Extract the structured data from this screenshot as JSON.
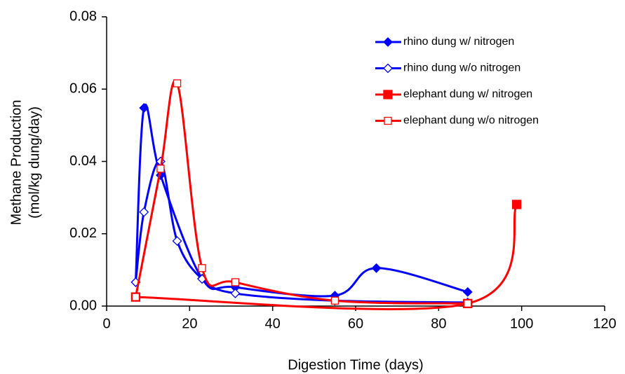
{
  "chart_data": {
    "type": "line",
    "xlabel": "Digestion Time (days)",
    "ylabel": [
      "Methane Production",
      "(mol/kg dung/day)"
    ],
    "xlim": [
      0,
      120
    ],
    "xticks": [
      0,
      20,
      40,
      60,
      80,
      100,
      120
    ],
    "ylim": [
      0,
      0.08
    ],
    "yticks": [
      {
        "value": 0,
        "label": "0.00"
      },
      {
        "value": 0.02,
        "label": "0.02"
      },
      {
        "value": 0.04,
        "label": "0.04"
      },
      {
        "value": 0.06,
        "label": "0.06"
      },
      {
        "value": 0.08,
        "label": "0.08"
      }
    ],
    "legend": "upper right",
    "series": [
      {
        "name": "rhino dung w/ nitrogen",
        "color": "#0000ff",
        "marker": "filled-diamond",
        "x": [
          7,
          9,
          13,
          23,
          31,
          55,
          65,
          87
        ],
        "values": [
          0.0066,
          0.0548,
          0.0362,
          0.0076,
          0.0052,
          0.0029,
          0.0105,
          0.0039
        ]
      },
      {
        "name": "rhino dung w/o nitrogen",
        "color": "#0000ff",
        "marker": "open-diamond",
        "x": [
          7,
          9,
          13,
          17,
          23,
          31,
          55,
          87
        ],
        "values": [
          0.0066,
          0.026,
          0.04,
          0.018,
          0.0075,
          0.0035,
          0.0015,
          0.001
        ]
      },
      {
        "name": "elephant dung w/ nitrogen",
        "color": "#ff0000",
        "marker": "filled-square",
        "x": [
          7,
          87,
          98.8
        ],
        "values": [
          0.0025,
          0.0007,
          0.0281
        ]
      },
      {
        "name": "elephant dung w/o nitrogen",
        "color": "#ff0000",
        "marker": "open-square",
        "x": [
          7,
          13,
          17,
          23,
          31,
          55,
          87
        ],
        "values": [
          0.0025,
          0.038,
          0.0616,
          0.0105,
          0.0066,
          0.0015,
          0.0007
        ]
      }
    ]
  }
}
